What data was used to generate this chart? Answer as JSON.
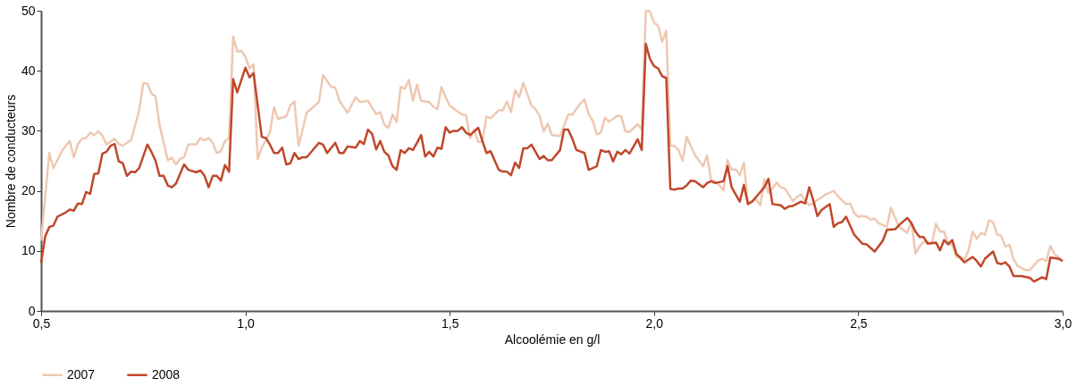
{
  "chart_data": {
    "type": "line",
    "xlabel": "Alcoolémie en g/l",
    "ylabel": "Nombre de conducteurs",
    "xlim": [
      0.5,
      3.0
    ],
    "xticks": [
      {
        "value": 0.5,
        "label": "0,5"
      },
      {
        "value": 1.0,
        "label": "1,0"
      },
      {
        "value": 1.5,
        "label": "1,5"
      },
      {
        "value": 2.0,
        "label": "2,0"
      },
      {
        "value": 2.5,
        "label": "2,5"
      },
      {
        "value": 3.0,
        "label": "3,0"
      }
    ],
    "ylim": [
      0,
      50
    ],
    "yticks": [
      0,
      10,
      20,
      30,
      40,
      50
    ],
    "grid": false,
    "legend": "bottom left",
    "line_style": "solid",
    "series": [
      {
        "name": "2007",
        "color": "#efc8b2",
        "x": [
          0.5,
          0.52,
          0.53,
          0.55,
          0.56,
          0.57,
          0.58,
          0.59,
          0.6,
          0.61,
          0.62,
          0.63,
          0.64,
          0.65,
          0.66,
          0.68,
          0.69,
          0.7,
          0.71,
          0.72,
          0.74,
          0.75,
          0.76,
          0.77,
          0.78,
          0.79,
          0.81,
          0.82,
          0.83,
          0.84,
          0.85,
          0.86,
          0.88,
          0.89,
          0.9,
          0.91,
          0.92,
          0.93,
          0.94,
          0.95,
          0.96,
          0.97,
          0.98,
          0.99,
          1.0,
          1.01,
          1.02,
          1.03,
          1.04,
          1.06,
          1.07,
          1.08,
          1.1,
          1.11,
          1.12,
          1.13,
          1.15,
          1.18,
          1.19,
          1.21,
          1.22,
          1.23,
          1.25,
          1.27,
          1.28,
          1.3,
          1.32,
          1.33,
          1.34,
          1.35,
          1.36,
          1.37,
          1.38,
          1.39,
          1.4,
          1.41,
          1.42,
          1.43,
          1.45,
          1.46,
          1.47,
          1.48,
          1.49,
          1.5,
          1.53,
          1.54,
          1.55,
          1.56,
          1.57,
          1.58,
          1.59,
          1.6,
          1.62,
          1.63,
          1.64,
          1.65,
          1.66,
          1.67,
          1.68,
          1.7,
          1.71,
          1.72,
          1.73,
          1.74,
          1.75,
          1.77,
          1.78,
          1.79,
          1.8,
          1.82,
          1.83,
          1.84,
          1.85,
          1.86,
          1.87,
          1.88,
          1.89,
          1.91,
          1.92,
          1.93,
          1.94,
          1.96,
          1.97,
          1.98,
          1.99,
          2.0,
          2.01,
          2.02,
          2.03,
          2.04,
          2.05,
          2.06,
          2.07,
          2.08,
          2.09,
          2.1,
          2.12,
          2.13,
          2.14,
          2.15,
          2.16,
          2.17,
          2.18,
          2.19,
          2.2,
          2.21,
          2.22,
          2.23,
          2.24,
          2.25,
          2.26,
          2.27,
          2.28,
          2.29,
          2.3,
          2.31,
          2.32,
          2.34,
          2.35,
          2.36,
          2.37,
          2.38,
          2.39,
          2.4,
          2.41,
          2.42,
          2.44,
          2.45,
          2.47,
          2.48,
          2.49,
          2.5,
          2.51,
          2.52,
          2.53,
          2.54,
          2.55,
          2.57,
          2.58,
          2.59,
          2.6,
          2.62,
          2.63,
          2.64,
          2.65,
          2.66,
          2.67,
          2.68,
          2.69,
          2.7,
          2.71,
          2.72,
          2.73,
          2.74,
          2.75,
          2.76,
          2.77,
          2.78,
          2.79,
          2.8,
          2.81,
          2.82,
          2.83,
          2.84,
          2.85,
          2.86,
          2.87,
          2.88,
          2.89,
          2.91,
          2.92,
          2.94,
          2.95,
          2.96,
          2.97,
          2.98,
          3.0
        ],
        "values": [
          11.7,
          26.3,
          23.8,
          26.5,
          27.5,
          28.3,
          25.6,
          27.8,
          28.7,
          28.8,
          29.7,
          29.3,
          29.9,
          29.2,
          27.7,
          28.7,
          27.8,
          27.5,
          28,
          28.4,
          33.4,
          37.9,
          37.9,
          36.2,
          35.7,
          30.9,
          25.1,
          25.5,
          24.4,
          25.3,
          25.6,
          27.7,
          27.8,
          28.8,
          28.4,
          28.8,
          28,
          26.3,
          26.6,
          28.3,
          28.8,
          45.7,
          43.2,
          43.3,
          42.3,
          40.4,
          41.1,
          25.3,
          27.2,
          29.7,
          33.9,
          32,
          32.4,
          34.2,
          34.9,
          27.5,
          33,
          34.8,
          39.3,
          37.3,
          37.2,
          35,
          33,
          35.6,
          34.8,
          35,
          32.8,
          33.1,
          31,
          30.5,
          32.7,
          31.5,
          37.3,
          37,
          38.5,
          35,
          37.7,
          35,
          34.8,
          34,
          33.6,
          37.3,
          35.6,
          34.2,
          32.7,
          32.6,
          28.8,
          30.2,
          28.1,
          28.3,
          32.4,
          32.1,
          33.4,
          33.4,
          34.9,
          33.1,
          36.8,
          35.6,
          38,
          34.2,
          33.6,
          32.5,
          29.9,
          31.2,
          29.3,
          29.1,
          30.9,
          32.7,
          32.7,
          34.6,
          35.2,
          32.8,
          31.7,
          29.4,
          29.7,
          32.2,
          31.5,
          32.5,
          32.4,
          29.9,
          29.8,
          31.1,
          30.2,
          50,
          49.9,
          48,
          47.5,
          44.8,
          46.7,
          27.5,
          27.5,
          26.8,
          25,
          29,
          27.5,
          26,
          24.1,
          25.9,
          21.7,
          21.6,
          20.9,
          20.1,
          25.1,
          23.5,
          23.6,
          22.6,
          24.7,
          17.8,
          18.3,
          18.6,
          17.6,
          21.9,
          19.7,
          20.4,
          21.4,
          20.6,
          20.4,
          18.3,
          19,
          19.4,
          18.4,
          17.6,
          17.9,
          18.5,
          18.9,
          19.4,
          20,
          19.1,
          17.8,
          17.9,
          16.3,
          15.7,
          15.8,
          15.7,
          15.2,
          15.4,
          14.6,
          14,
          17.2,
          15.5,
          14,
          13,
          14.9,
          9.5,
          10.8,
          11.5,
          11.5,
          11.2,
          14.5,
          13.2,
          13.2,
          11.2,
          11,
          9,
          9.1,
          8.6,
          10.1,
          13.2,
          12,
          13,
          12.7,
          15.1,
          14.8,
          12.7,
          12.5,
          10.7,
          11,
          8.6,
          7.5,
          6.8,
          6.8,
          8.4,
          8.7,
          8.3,
          10.8,
          9.5,
          8.4
        ]
      },
      {
        "name": "2008",
        "color": "#c0472b",
        "x": [
          0.5,
          0.51,
          0.52,
          0.53,
          0.54,
          0.56,
          0.57,
          0.58,
          0.59,
          0.6,
          0.61,
          0.62,
          0.63,
          0.64,
          0.65,
          0.66,
          0.67,
          0.68,
          0.69,
          0.7,
          0.71,
          0.72,
          0.73,
          0.74,
          0.76,
          0.77,
          0.78,
          0.79,
          0.8,
          0.81,
          0.82,
          0.83,
          0.85,
          0.86,
          0.88,
          0.89,
          0.9,
          0.91,
          0.92,
          0.93,
          0.94,
          0.95,
          0.96,
          0.97,
          0.98,
          1.0,
          1.01,
          1.02,
          1.04,
          1.05,
          1.06,
          1.07,
          1.08,
          1.09,
          1.1,
          1.11,
          1.12,
          1.13,
          1.14,
          1.15,
          1.17,
          1.18,
          1.19,
          1.2,
          1.22,
          1.23,
          1.24,
          1.25,
          1.27,
          1.28,
          1.29,
          1.3,
          1.31,
          1.32,
          1.33,
          1.34,
          1.35,
          1.36,
          1.37,
          1.38,
          1.39,
          1.4,
          1.41,
          1.42,
          1.43,
          1.44,
          1.45,
          1.46,
          1.47,
          1.48,
          1.49,
          1.5,
          1.51,
          1.52,
          1.53,
          1.54,
          1.55,
          1.57,
          1.58,
          1.59,
          1.6,
          1.62,
          1.63,
          1.64,
          1.65,
          1.66,
          1.67,
          1.68,
          1.69,
          1.7,
          1.72,
          1.73,
          1.74,
          1.75,
          1.77,
          1.78,
          1.79,
          1.8,
          1.81,
          1.83,
          1.84,
          1.86,
          1.87,
          1.88,
          1.89,
          1.9,
          1.91,
          1.92,
          1.93,
          1.94,
          1.96,
          1.97,
          1.98,
          1.99,
          2.0,
          2.01,
          2.02,
          2.03,
          2.04,
          2.05,
          2.06,
          2.07,
          2.08,
          2.09,
          2.1,
          2.12,
          2.13,
          2.14,
          2.15,
          2.17,
          2.18,
          2.19,
          2.21,
          2.22,
          2.23,
          2.24,
          2.26,
          2.27,
          2.28,
          2.29,
          2.31,
          2.32,
          2.33,
          2.34,
          2.36,
          2.37,
          2.38,
          2.39,
          2.4,
          2.41,
          2.43,
          2.44,
          2.45,
          2.46,
          2.47,
          2.49,
          2.51,
          2.52,
          2.54,
          2.55,
          2.56,
          2.57,
          2.59,
          2.6,
          2.62,
          2.63,
          2.64,
          2.65,
          2.66,
          2.67,
          2.69,
          2.7,
          2.71,
          2.72,
          2.73,
          2.74,
          2.75,
          2.76,
          2.78,
          2.79,
          2.8,
          2.81,
          2.83,
          2.84,
          2.85,
          2.86,
          2.87,
          2.88,
          2.9,
          2.92,
          2.93,
          2.95,
          2.96,
          2.97,
          2.99,
          3.0
        ],
        "values": [
          8,
          12.4,
          14,
          14.2,
          15.7,
          16.4,
          16.9,
          16.7,
          17.9,
          17.8,
          19.8,
          19.5,
          22.8,
          22.9,
          26.2,
          26.5,
          27.5,
          27.8,
          24.9,
          24.6,
          22.5,
          23.2,
          23.1,
          23.8,
          27.7,
          26.5,
          25,
          22.5,
          22.5,
          20.9,
          20.6,
          21.2,
          24.4,
          23.5,
          23.1,
          23.4,
          22.5,
          20.6,
          22.5,
          22.5,
          21.7,
          24.3,
          23.2,
          38.6,
          36.4,
          40.5,
          38.9,
          39.6,
          29,
          28.8,
          27.7,
          26.3,
          26.3,
          27.2,
          24.4,
          24.6,
          26.3,
          25.3,
          25.6,
          25.6,
          27.2,
          28,
          27.7,
          26.3,
          28,
          26.3,
          26.3,
          27.4,
          27.2,
          28.3,
          27.8,
          30.2,
          29.5,
          26.9,
          28.3,
          26.5,
          25.9,
          24.1,
          23.5,
          26.8,
          26.3,
          27.1,
          26.8,
          28,
          29.3,
          25.7,
          26.5,
          25.7,
          27.2,
          27,
          30.6,
          29.7,
          30,
          30,
          30.6,
          29.7,
          29.3,
          30.5,
          28.3,
          26.3,
          26.6,
          23.5,
          23.2,
          23.2,
          22.6,
          24.7,
          23.8,
          27.1,
          27.1,
          27.7,
          25.3,
          25.8,
          25.1,
          25.1,
          26.8,
          30.2,
          30.2,
          28.7,
          26.8,
          26.3,
          23.5,
          24.1,
          26.8,
          26.5,
          26.6,
          24.9,
          26.5,
          26.1,
          26.8,
          26.2,
          28.6,
          26.8,
          44.5,
          42,
          40.8,
          40.4,
          39.1,
          38.8,
          20.3,
          20.2,
          20.4,
          20.4,
          20.9,
          21.7,
          21.6,
          20.6,
          21.3,
          21.6,
          21.3,
          21.6,
          24.1,
          20.6,
          18.2,
          21,
          17.8,
          18.2,
          19.8,
          20.6,
          22,
          17.8,
          17.6,
          17,
          17.4,
          17.5,
          18.2,
          17.9,
          20.6,
          18.4,
          15.8,
          16.8,
          17.8,
          14,
          14.6,
          14.8,
          15.7,
          12.7,
          11.2,
          11.1,
          9.9,
          10.8,
          11.7,
          13.5,
          13.6,
          14.3,
          15.5,
          14.6,
          13.2,
          12.3,
          12.3,
          11.2,
          11.4,
          10.1,
          11.8,
          11.1,
          11.8,
          9.5,
          8.8,
          8.1,
          9,
          8.3,
          7.4,
          8.7,
          9.9,
          8,
          7.8,
          8.1,
          7.4,
          5.8,
          5.8,
          5.5,
          4.9,
          5.6,
          5.3,
          8.9,
          8.7,
          8.3
        ]
      }
    ]
  }
}
